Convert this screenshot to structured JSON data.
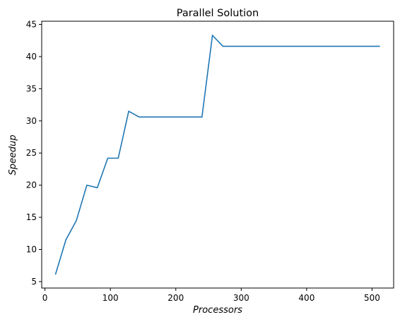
{
  "chart_data": {
    "type": "line",
    "title": "Parallel Solution",
    "xlabel": "Processors",
    "ylabel": "Speedup",
    "xlim": [
      -5,
      533
    ],
    "ylim": [
      4,
      45.5
    ],
    "xticks": [
      0,
      100,
      200,
      300,
      400,
      500
    ],
    "yticks": [
      5,
      10,
      15,
      20,
      25,
      30,
      35,
      40,
      45
    ],
    "grid": false,
    "series": [
      {
        "color": "#1f77b4",
        "x": [
          16,
          32,
          48,
          64,
          80,
          96,
          112,
          128,
          144,
          160,
          176,
          192,
          208,
          224,
          240,
          256,
          272,
          288,
          304,
          320,
          336,
          352,
          368,
          384,
          400,
          416,
          432,
          448,
          464,
          480,
          496,
          512
        ],
        "y": [
          6.1,
          11.5,
          14.5,
          20.0,
          19.6,
          24.2,
          24.2,
          31.5,
          30.6,
          30.6,
          30.6,
          30.6,
          30.6,
          30.6,
          30.6,
          43.3,
          41.6,
          41.6,
          41.6,
          41.6,
          41.6,
          41.6,
          41.6,
          41.6,
          41.6,
          41.6,
          41.6,
          41.6,
          41.6,
          41.6,
          41.6,
          41.6
        ]
      }
    ]
  }
}
